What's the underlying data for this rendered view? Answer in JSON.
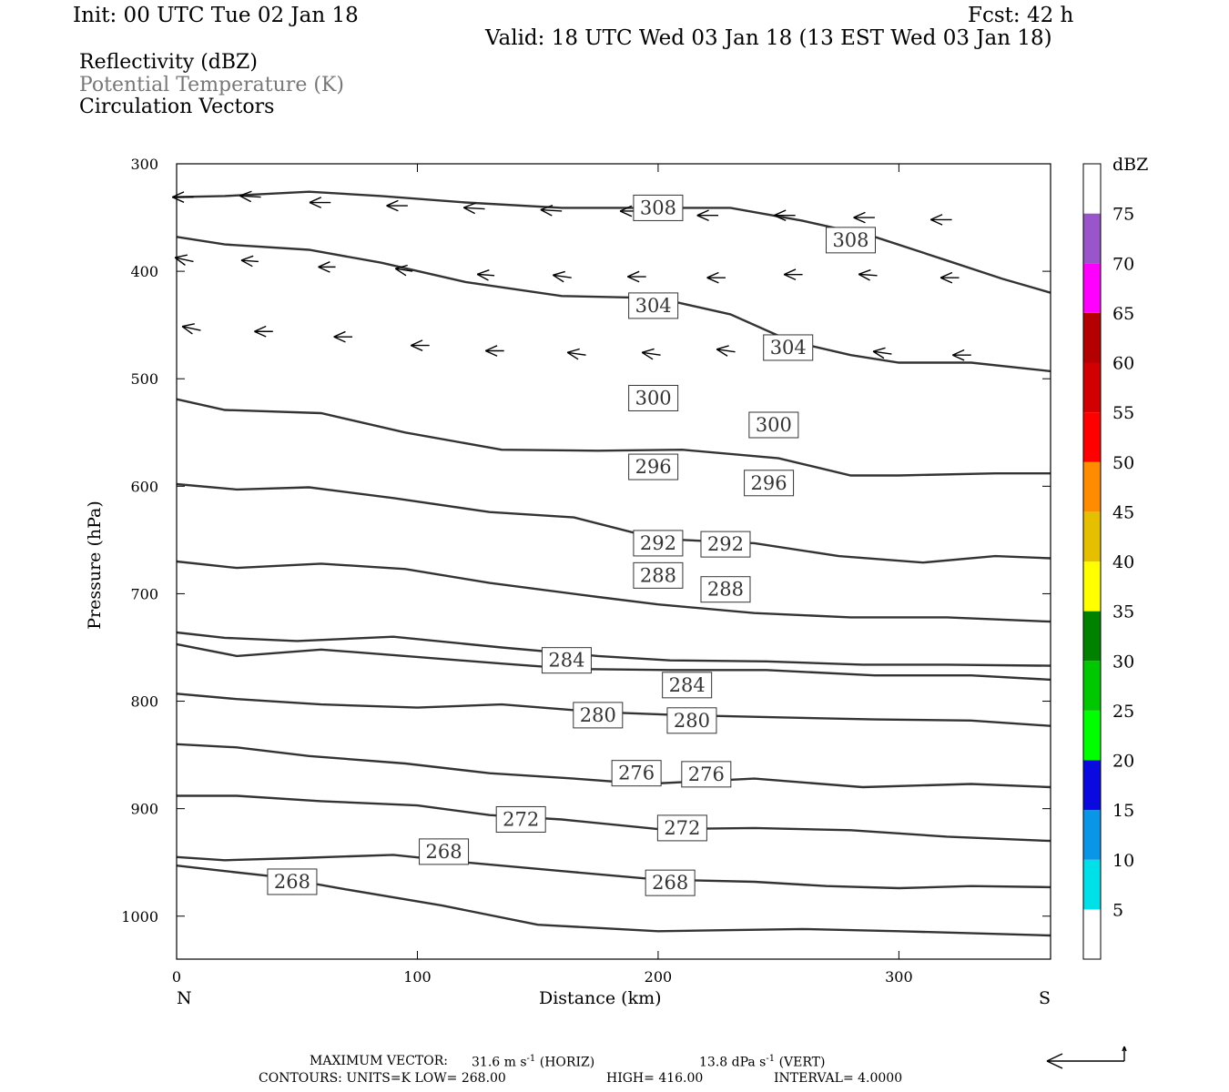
{
  "header": {
    "init": "Init: 00 UTC Tue 02 Jan 18",
    "fcst": "Fcst:   42 h",
    "valid": "Valid: 18 UTC Wed 03 Jan 18 (13 EST Wed 03 Jan 18)"
  },
  "legend": {
    "reflectivity": "Reflectivity (dBZ)",
    "theta": "Potential Temperature (K)",
    "vectors": "Circulation Vectors"
  },
  "colors": {
    "contour": "#333333",
    "theta_text": "#777777",
    "vector": "#000000"
  },
  "footer": {
    "max_vector_label": "MAXIMUM VECTOR:",
    "max_horiz": "31.6 m s",
    "max_horiz_unit": "(HORIZ)",
    "max_vert": "13.8 dPa s",
    "max_vert_unit": "(VERT)",
    "exp": "-1",
    "contours": "CONTOURS:  UNITS=K  LOW=  268.00",
    "high": "HIGH=  416.00",
    "interval": "INTERVAL=    4.0000"
  },
  "colorbar": {
    "unit": "dBZ",
    "labels": [
      "5",
      "10",
      "15",
      "20",
      "25",
      "30",
      "35",
      "40",
      "45",
      "50",
      "55",
      "60",
      "65",
      "70",
      "75"
    ],
    "colors": [
      "#ffffff",
      "#00e0e8",
      "#0a96e6",
      "#0a0ae0",
      "#00ff00",
      "#00c800",
      "#008200",
      "#ffff00",
      "#e6c000",
      "#ff8c00",
      "#ff0000",
      "#d20000",
      "#b40000",
      "#ff00ff",
      "#9955c9",
      "#ffffff"
    ]
  },
  "chart_data": {
    "type": "contour",
    "xlabel": "Distance (km)",
    "ylabel": "Pressure (hPa)",
    "xlim": [
      0,
      363
    ],
    "ylim": [
      300,
      1040
    ],
    "x_ticks": [
      "0",
      "100",
      "200",
      "300"
    ],
    "y_ticks": [
      "300",
      "400",
      "500",
      "600",
      "700",
      "800",
      "900",
      "1000"
    ],
    "x_left_label": "N",
    "x_right_label": "S",
    "contours": [
      {
        "level": 308,
        "points": [
          [
            0,
            331
          ],
          [
            20,
            330
          ],
          [
            55,
            326
          ],
          [
            85,
            330
          ],
          [
            120,
            336
          ],
          [
            160,
            341
          ],
          [
            200,
            341
          ],
          [
            230,
            341
          ],
          [
            260,
            353
          ],
          [
            290,
            368
          ],
          [
            320,
            390
          ],
          [
            343,
            407
          ],
          [
            363,
            420
          ]
        ],
        "labels": [
          [
            200,
            341
          ],
          [
            280,
            371
          ]
        ]
      },
      {
        "level": 304,
        "points": [
          [
            0,
            368
          ],
          [
            20,
            375
          ],
          [
            55,
            380
          ],
          [
            85,
            392
          ],
          [
            120,
            410
          ],
          [
            160,
            423
          ],
          [
            200,
            425
          ],
          [
            230,
            440
          ],
          [
            255,
            465
          ],
          [
            280,
            478
          ],
          [
            300,
            485
          ],
          [
            330,
            485
          ],
          [
            363,
            493
          ]
        ],
        "labels": [
          [
            198,
            432
          ],
          [
            254,
            471
          ]
        ]
      },
      {
        "level": 300,
        "points": [
          [
            0,
            519
          ],
          [
            20,
            529
          ],
          [
            60,
            532
          ],
          [
            95,
            550
          ],
          [
            135,
            566
          ],
          [
            175,
            567
          ],
          [
            210,
            566
          ],
          [
            250,
            574
          ],
          [
            280,
            590
          ],
          [
            300,
            590
          ],
          [
            340,
            588
          ],
          [
            363,
            588
          ]
        ],
        "labels": [
          [
            198,
            518
          ],
          [
            248,
            543
          ]
        ]
      },
      {
        "level": 296,
        "points": [
          [
            0,
            598
          ],
          [
            25,
            603
          ],
          [
            55,
            601
          ],
          [
            90,
            611
          ],
          [
            130,
            624
          ],
          [
            165,
            629
          ],
          [
            200,
            649
          ],
          [
            240,
            653
          ],
          [
            275,
            665
          ],
          [
            310,
            671
          ],
          [
            340,
            665
          ],
          [
            363,
            667
          ]
        ],
        "labels": [
          [
            198,
            582
          ],
          [
            246,
            597
          ]
        ]
      },
      {
        "level": 292,
        "points": [
          [
            0,
            670
          ],
          [
            25,
            676
          ],
          [
            60,
            672
          ],
          [
            95,
            677
          ],
          [
            130,
            690
          ],
          [
            175,
            703
          ],
          [
            200,
            710
          ],
          [
            240,
            718
          ],
          [
            280,
            722
          ],
          [
            320,
            722
          ],
          [
            363,
            726
          ]
        ],
        "labels": [
          [
            200,
            653
          ],
          [
            228,
            654
          ]
        ]
      },
      {
        "level": 288,
        "points": [
          [
            0,
            736
          ],
          [
            20,
            741
          ],
          [
            50,
            744
          ],
          [
            90,
            740
          ],
          [
            135,
            750
          ],
          [
            175,
            758
          ],
          [
            205,
            762
          ],
          [
            245,
            763
          ],
          [
            285,
            766
          ],
          [
            320,
            766
          ],
          [
            363,
            767
          ]
        ],
        "labels": [
          [
            200,
            683
          ],
          [
            228,
            696
          ]
        ]
      },
      {
        "level": 284,
        "points": [
          [
            0,
            747
          ],
          [
            25,
            758
          ],
          [
            60,
            752
          ],
          [
            95,
            758
          ],
          [
            135,
            765
          ],
          [
            165,
            770
          ],
          [
            205,
            771
          ],
          [
            245,
            771
          ],
          [
            290,
            776
          ],
          [
            330,
            776
          ],
          [
            363,
            780
          ]
        ],
        "labels": [
          [
            162,
            762
          ],
          [
            212,
            785
          ]
        ]
      },
      {
        "level": 280,
        "points": [
          [
            0,
            793
          ],
          [
            25,
            798
          ],
          [
            60,
            803
          ],
          [
            100,
            806
          ],
          [
            135,
            803
          ],
          [
            175,
            810
          ],
          [
            210,
            813
          ],
          [
            250,
            815
          ],
          [
            290,
            817
          ],
          [
            330,
            818
          ],
          [
            363,
            823
          ]
        ],
        "labels": [
          [
            175,
            813
          ],
          [
            214,
            818
          ]
        ]
      },
      {
        "level": 276,
        "points": [
          [
            0,
            840
          ],
          [
            25,
            843
          ],
          [
            55,
            851
          ],
          [
            95,
            858
          ],
          [
            130,
            867
          ],
          [
            165,
            872
          ],
          [
            195,
            877
          ],
          [
            240,
            872
          ],
          [
            285,
            880
          ],
          [
            330,
            877
          ],
          [
            363,
            880
          ]
        ],
        "labels": [
          [
            191,
            867
          ],
          [
            220,
            868
          ]
        ]
      },
      {
        "level": 272,
        "points": [
          [
            0,
            888
          ],
          [
            25,
            888
          ],
          [
            60,
            893
          ],
          [
            100,
            897
          ],
          [
            130,
            906
          ],
          [
            160,
            910
          ],
          [
            200,
            919
          ],
          [
            240,
            918
          ],
          [
            280,
            920
          ],
          [
            320,
            926
          ],
          [
            363,
            930
          ]
        ],
        "labels": [
          [
            143,
            910
          ],
          [
            210,
            918
          ]
        ]
      },
      {
        "level": 268,
        "points": [
          [
            0,
            945
          ],
          [
            20,
            948
          ],
          [
            50,
            946
          ],
          [
            90,
            943
          ],
          [
            120,
            950
          ],
          [
            160,
            958
          ],
          [
            200,
            966
          ],
          [
            240,
            968
          ],
          [
            270,
            972
          ],
          [
            300,
            974
          ],
          [
            330,
            972
          ],
          [
            363,
            973
          ]
        ],
        "labels": [
          [
            111,
            940
          ],
          [
            205,
            969
          ]
        ]
      },
      {
        "level": 268,
        "points": [
          [
            0,
            953
          ],
          [
            20,
            958
          ],
          [
            40,
            963
          ],
          [
            70,
            975
          ],
          [
            110,
            990
          ],
          [
            150,
            1008
          ],
          [
            200,
            1014
          ],
          [
            260,
            1012
          ],
          [
            300,
            1014
          ],
          [
            363,
            1018
          ]
        ],
        "labels": [
          [
            48,
            968
          ]
        ]
      }
    ],
    "vectors": [
      [
        7,
        331,
        -16,
        0
      ],
      [
        35,
        331,
        -16,
        -1
      ],
      [
        64,
        336,
        -16,
        0
      ],
      [
        96,
        339,
        -16,
        0
      ],
      [
        128,
        342,
        -16,
        -1
      ],
      [
        160,
        344,
        -16,
        -1
      ],
      [
        193,
        344,
        -16,
        0
      ],
      [
        225,
        348,
        -16,
        0
      ],
      [
        257,
        348,
        -16,
        0
      ],
      [
        290,
        350,
        -16,
        0
      ],
      [
        322,
        352,
        -16,
        0
      ],
      [
        7,
        391,
        -14,
        -3
      ],
      [
        34,
        391,
        -13,
        -1
      ],
      [
        66,
        396,
        -13,
        0
      ],
      [
        98,
        400,
        -13,
        -2
      ],
      [
        132,
        404,
        -13,
        -1
      ],
      [
        164,
        406,
        -14,
        -2
      ],
      [
        195,
        405,
        -14,
        0
      ],
      [
        228,
        406,
        -14,
        0
      ],
      [
        260,
        403,
        -14,
        0
      ],
      [
        291,
        404,
        -14,
        -1
      ],
      [
        325,
        406,
        -14,
        0
      ],
      [
        10,
        455,
        -14,
        -3
      ],
      [
        40,
        456,
        -14,
        0
      ],
      [
        73,
        461,
        -14,
        0
      ],
      [
        105,
        469,
        -14,
        0
      ],
      [
        136,
        474,
        -14,
        0
      ],
      [
        170,
        478,
        -14,
        -2
      ],
      [
        201,
        478,
        -14,
        -2
      ],
      [
        232,
        475,
        -14,
        -2
      ],
      [
        264,
        477,
        -14,
        -1
      ],
      [
        297,
        477,
        -14,
        -2
      ],
      [
        330,
        478,
        -14,
        0
      ]
    ]
  }
}
